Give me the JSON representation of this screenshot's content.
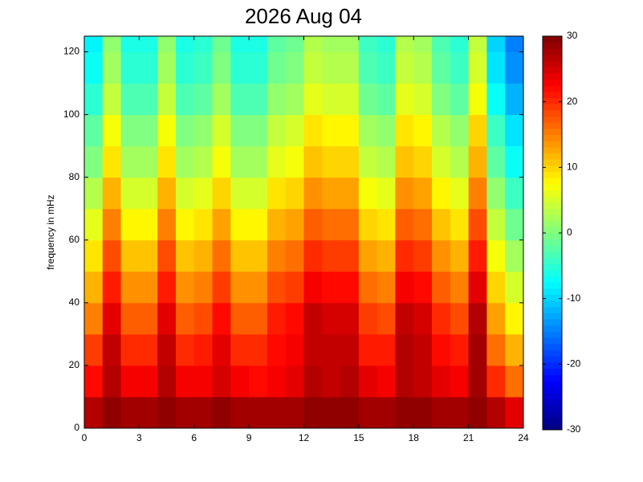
{
  "chart_data": {
    "type": "heatmap",
    "title": "2026 Aug 04",
    "y_label": "frequency in mHz",
    "colormap": "jet",
    "x_bins": [
      0,
      1,
      2,
      3,
      4,
      5,
      6,
      7,
      8,
      9,
      10,
      11,
      12,
      13,
      14,
      15,
      16,
      17,
      18,
      19,
      20,
      21,
      22,
      23,
      24
    ],
    "y_bins": [
      0,
      10,
      20,
      30,
      40,
      50,
      60,
      70,
      80,
      90,
      100,
      110,
      120,
      125
    ],
    "values": [
      [
        27,
        29,
        28,
        28,
        29,
        28,
        28,
        29,
        28,
        28,
        28,
        28,
        29,
        29,
        29,
        28,
        28,
        29,
        29,
        28,
        28,
        29,
        27,
        24
      ],
      [
        22,
        27,
        23,
        23,
        27,
        23,
        23,
        25,
        23,
        22,
        23,
        24,
        27,
        26,
        27,
        24,
        23,
        27,
        26,
        24,
        23,
        28,
        20,
        16
      ],
      [
        19,
        26,
        20,
        20,
        26,
        20,
        21,
        24,
        20,
        20,
        22,
        23,
        26,
        26,
        26,
        21,
        21,
        27,
        26,
        22,
        21,
        28,
        16,
        12
      ],
      [
        15,
        24,
        17,
        17,
        24,
        17,
        18,
        22,
        17,
        17,
        21,
        22,
        26,
        25,
        25,
        19,
        18,
        26,
        25,
        20,
        18,
        27,
        13,
        8
      ],
      [
        12,
        21,
        14,
        14,
        21,
        14,
        15,
        19,
        14,
        14,
        18,
        19,
        23,
        22,
        22,
        16,
        15,
        23,
        22,
        17,
        15,
        24,
        10,
        5
      ],
      [
        9,
        18,
        11,
        11,
        18,
        11,
        12,
        16,
        11,
        11,
        15,
        16,
        20,
        19,
        19,
        13,
        12,
        20,
        19,
        14,
        12,
        21,
        7,
        2
      ],
      [
        6,
        15,
        8,
        8,
        15,
        8,
        9,
        13,
        8,
        8,
        12,
        13,
        17,
        16,
        16,
        10,
        9,
        17,
        16,
        11,
        9,
        18,
        4,
        -1
      ],
      [
        3,
        12,
        5,
        5,
        12,
        5,
        6,
        10,
        5,
        5,
        9,
        10,
        14,
        13,
        13,
        7,
        6,
        14,
        13,
        8,
        6,
        15,
        1,
        -4
      ],
      [
        0,
        9,
        2,
        2,
        9,
        2,
        3,
        7,
        2,
        2,
        6,
        7,
        11,
        10,
        10,
        4,
        3,
        11,
        10,
        5,
        3,
        12,
        -2,
        -7
      ],
      [
        -2,
        7,
        0,
        0,
        7,
        0,
        1,
        5,
        0,
        0,
        4,
        5,
        9,
        8,
        8,
        2,
        1,
        9,
        8,
        3,
        1,
        10,
        -4,
        -9
      ],
      [
        -5,
        4,
        -3,
        -3,
        4,
        -3,
        -2,
        2,
        -3,
        -3,
        1,
        2,
        6,
        5,
        5,
        -1,
        -2,
        6,
        5,
        0,
        -2,
        7,
        -7,
        -12
      ],
      [
        -7,
        2,
        -5,
        -5,
        2,
        -5,
        -4,
        0,
        -5,
        -5,
        -1,
        0,
        4,
        3,
        3,
        -3,
        -4,
        4,
        3,
        -2,
        -4,
        5,
        -9,
        -14
      ],
      [
        -8,
        1,
        -6,
        -6,
        1,
        -6,
        -5,
        -1,
        -6,
        -6,
        -2,
        -1,
        3,
        2,
        2,
        -4,
        -5,
        3,
        2,
        -3,
        -5,
        4,
        -10,
        -15
      ]
    ],
    "xlim": [
      0,
      24
    ],
    "xticks": [
      0,
      3,
      6,
      9,
      12,
      15,
      18,
      21,
      24
    ],
    "ylim": [
      0,
      125
    ],
    "yticks": [
      0,
      20,
      40,
      60,
      80,
      100,
      120
    ],
    "clim": [
      -30,
      30
    ],
    "cticks": [
      -30,
      -20,
      -10,
      0,
      10,
      20,
      30
    ]
  }
}
